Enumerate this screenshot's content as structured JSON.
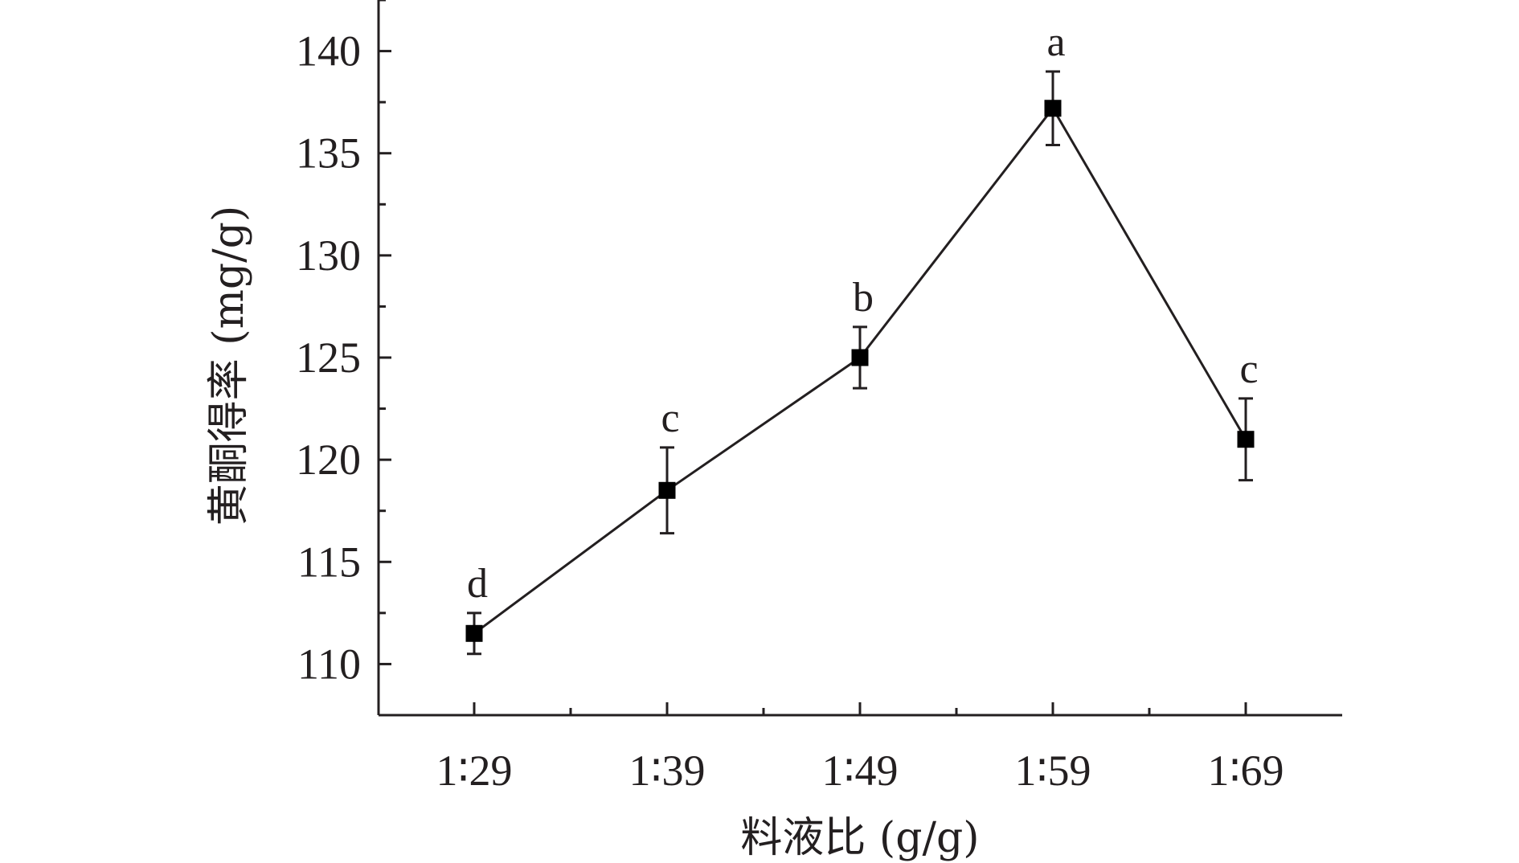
{
  "chart_data": {
    "type": "line",
    "title": "",
    "xlabel": "料液比 (g/g)",
    "ylabel": "黄酮得率 (mg/g)",
    "categories": [
      "1∶29",
      "1∶39",
      "1∶49",
      "1∶59",
      "1∶69"
    ],
    "series": [
      {
        "values": [
          111.5,
          118.5,
          125.0,
          137.2,
          121.0
        ],
        "errors": [
          1.0,
          2.1,
          1.5,
          1.8,
          2.0
        ],
        "significance": [
          "d",
          "c",
          "b",
          "a",
          "c"
        ]
      }
    ],
    "ylim": [
      107.5,
      142.5
    ],
    "yticks": [
      110,
      115,
      120,
      125,
      130,
      135,
      140
    ],
    "ytick_labels": [
      "110",
      "115",
      "120",
      "125",
      "130",
      "135",
      "140"
    ],
    "grid": false,
    "legend": "none",
    "marker": "square",
    "color": "#231f20"
  }
}
